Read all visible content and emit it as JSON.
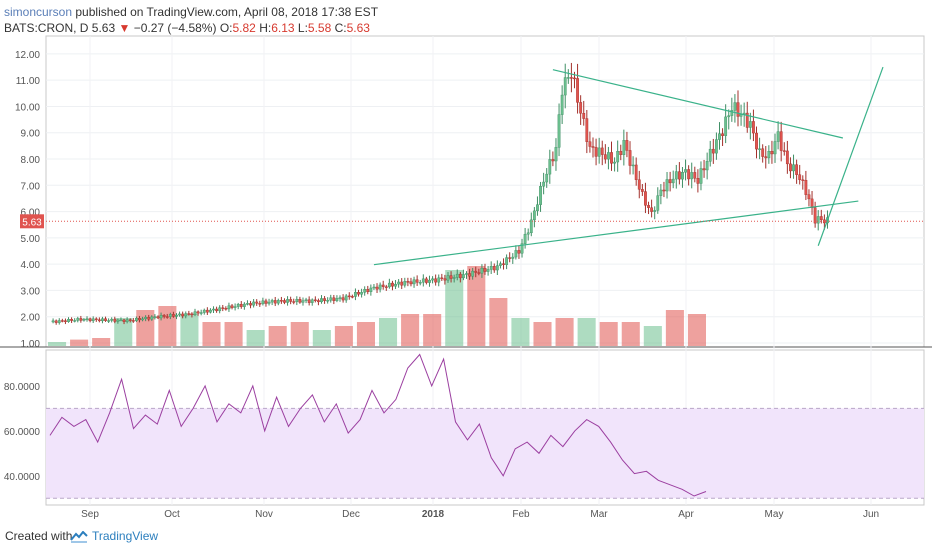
{
  "header": {
    "author": "simoncurson",
    "published": "published on TradingView.com, April 08, 2018 17:38 EST",
    "symbol": "BATS:CRON, D",
    "last": "5.63",
    "change_arrow": "▼",
    "change": "−0.27 (−4.58%)",
    "o_label": "O:",
    "o_value": "5.82",
    "h_label": "H:",
    "h_value": "6.13",
    "l_label": "L:",
    "l_value": "5.58",
    "c_label": "C:",
    "c_value": "5.63"
  },
  "colors": {
    "up": "#6bbf8e",
    "down": "#e0544f",
    "trendline": "#3ab28a",
    "rsi_line": "#9b3fa0",
    "rsi_band": "#f1e4fb",
    "price_tag": "#e0544f"
  },
  "chart_data": [
    {
      "type": "candlestick",
      "x_ticks": [
        "Sep",
        "Oct",
        "Nov",
        "Dec",
        "2018",
        "Feb",
        "Mar",
        "Apr",
        "May",
        "Jun"
      ],
      "y_ticks": [
        "12.00",
        "11.00",
        "10.00",
        "9.00",
        "8.00",
        "7.00",
        "6.00",
        "5.00",
        "4.00",
        "3.00",
        "2.00",
        "1.00"
      ],
      "ylim": [
        1.0,
        12.3
      ],
      "current_price_label": "5.63",
      "price_anchors": [
        [
          0,
          1.8
        ],
        [
          10,
          1.9
        ],
        [
          25,
          1.85
        ],
        [
          35,
          2.0
        ],
        [
          45,
          2.1
        ],
        [
          55,
          2.3
        ],
        [
          65,
          2.5
        ],
        [
          75,
          2.6
        ],
        [
          85,
          2.6
        ],
        [
          95,
          2.7
        ],
        [
          105,
          3.1
        ],
        [
          115,
          3.3
        ],
        [
          125,
          3.4
        ],
        [
          135,
          3.6
        ],
        [
          145,
          3.9
        ],
        [
          152,
          4.5
        ],
        [
          156,
          5.6
        ],
        [
          160,
          7.2
        ],
        [
          164,
          8.4
        ],
        [
          166,
          10.7
        ],
        [
          169,
          11.3
        ],
        [
          172,
          9.8
        ],
        [
          175,
          8.4
        ],
        [
          179,
          8.2
        ],
        [
          183,
          7.9
        ],
        [
          186,
          8.6
        ],
        [
          189,
          7.6
        ],
        [
          192,
          6.6
        ],
        [
          195,
          5.9
        ],
        [
          198,
          6.8
        ],
        [
          202,
          7.3
        ],
        [
          206,
          7.5
        ],
        [
          210,
          7.2
        ],
        [
          214,
          8.2
        ],
        [
          218,
          9.1
        ],
        [
          221,
          10.0
        ],
        [
          224,
          9.7
        ],
        [
          227,
          9.3
        ],
        [
          230,
          8.2
        ],
        [
          233,
          8.1
        ],
        [
          236,
          8.9
        ],
        [
          239,
          7.8
        ],
        [
          242,
          7.5
        ],
        [
          245,
          6.8
        ],
        [
          248,
          5.7
        ],
        [
          250,
          5.7
        ],
        [
          252,
          5.63
        ]
      ],
      "volume_series": {
        "name": "Volume",
        "values": [
          0.05,
          0.08,
          0.1,
          0.35,
          0.45,
          0.5,
          0.4,
          0.3,
          0.3,
          0.2,
          0.25,
          0.3,
          0.2,
          0.25,
          0.3,
          0.35,
          0.4,
          0.4,
          0.95,
          1.0,
          0.6,
          0.35,
          0.3,
          0.35,
          0.35,
          0.3,
          0.3,
          0.25,
          0.45,
          0.4
        ]
      },
      "trendlines": [
        {
          "from": [
            163,
            11.4
          ],
          "to": [
            257,
            8.8
          ]
        },
        {
          "from": [
            105,
            3.98
          ],
          "to": [
            262,
            6.4
          ]
        },
        {
          "from": [
            249,
            4.7
          ],
          "to": [
            270,
            11.5
          ]
        }
      ]
    },
    {
      "type": "line",
      "y_ticks": [
        "80.0000",
        "60.0000",
        "40.0000"
      ],
      "ylim": [
        27,
        96
      ],
      "band": [
        30,
        70
      ],
      "series": [
        {
          "values": [
            58,
            66,
            62,
            65,
            55,
            68,
            83,
            61,
            67,
            63,
            78,
            62,
            70,
            80,
            64,
            72,
            68,
            80,
            60,
            75,
            62,
            70,
            76,
            64,
            72,
            59,
            65,
            78,
            68,
            74,
            88,
            94,
            80,
            92,
            64,
            56,
            63,
            48,
            40,
            52,
            55,
            50,
            58,
            53,
            60,
            65,
            62,
            55,
            47,
            41,
            42,
            38,
            36,
            34,
            31,
            33
          ]
        }
      ]
    }
  ]
}
